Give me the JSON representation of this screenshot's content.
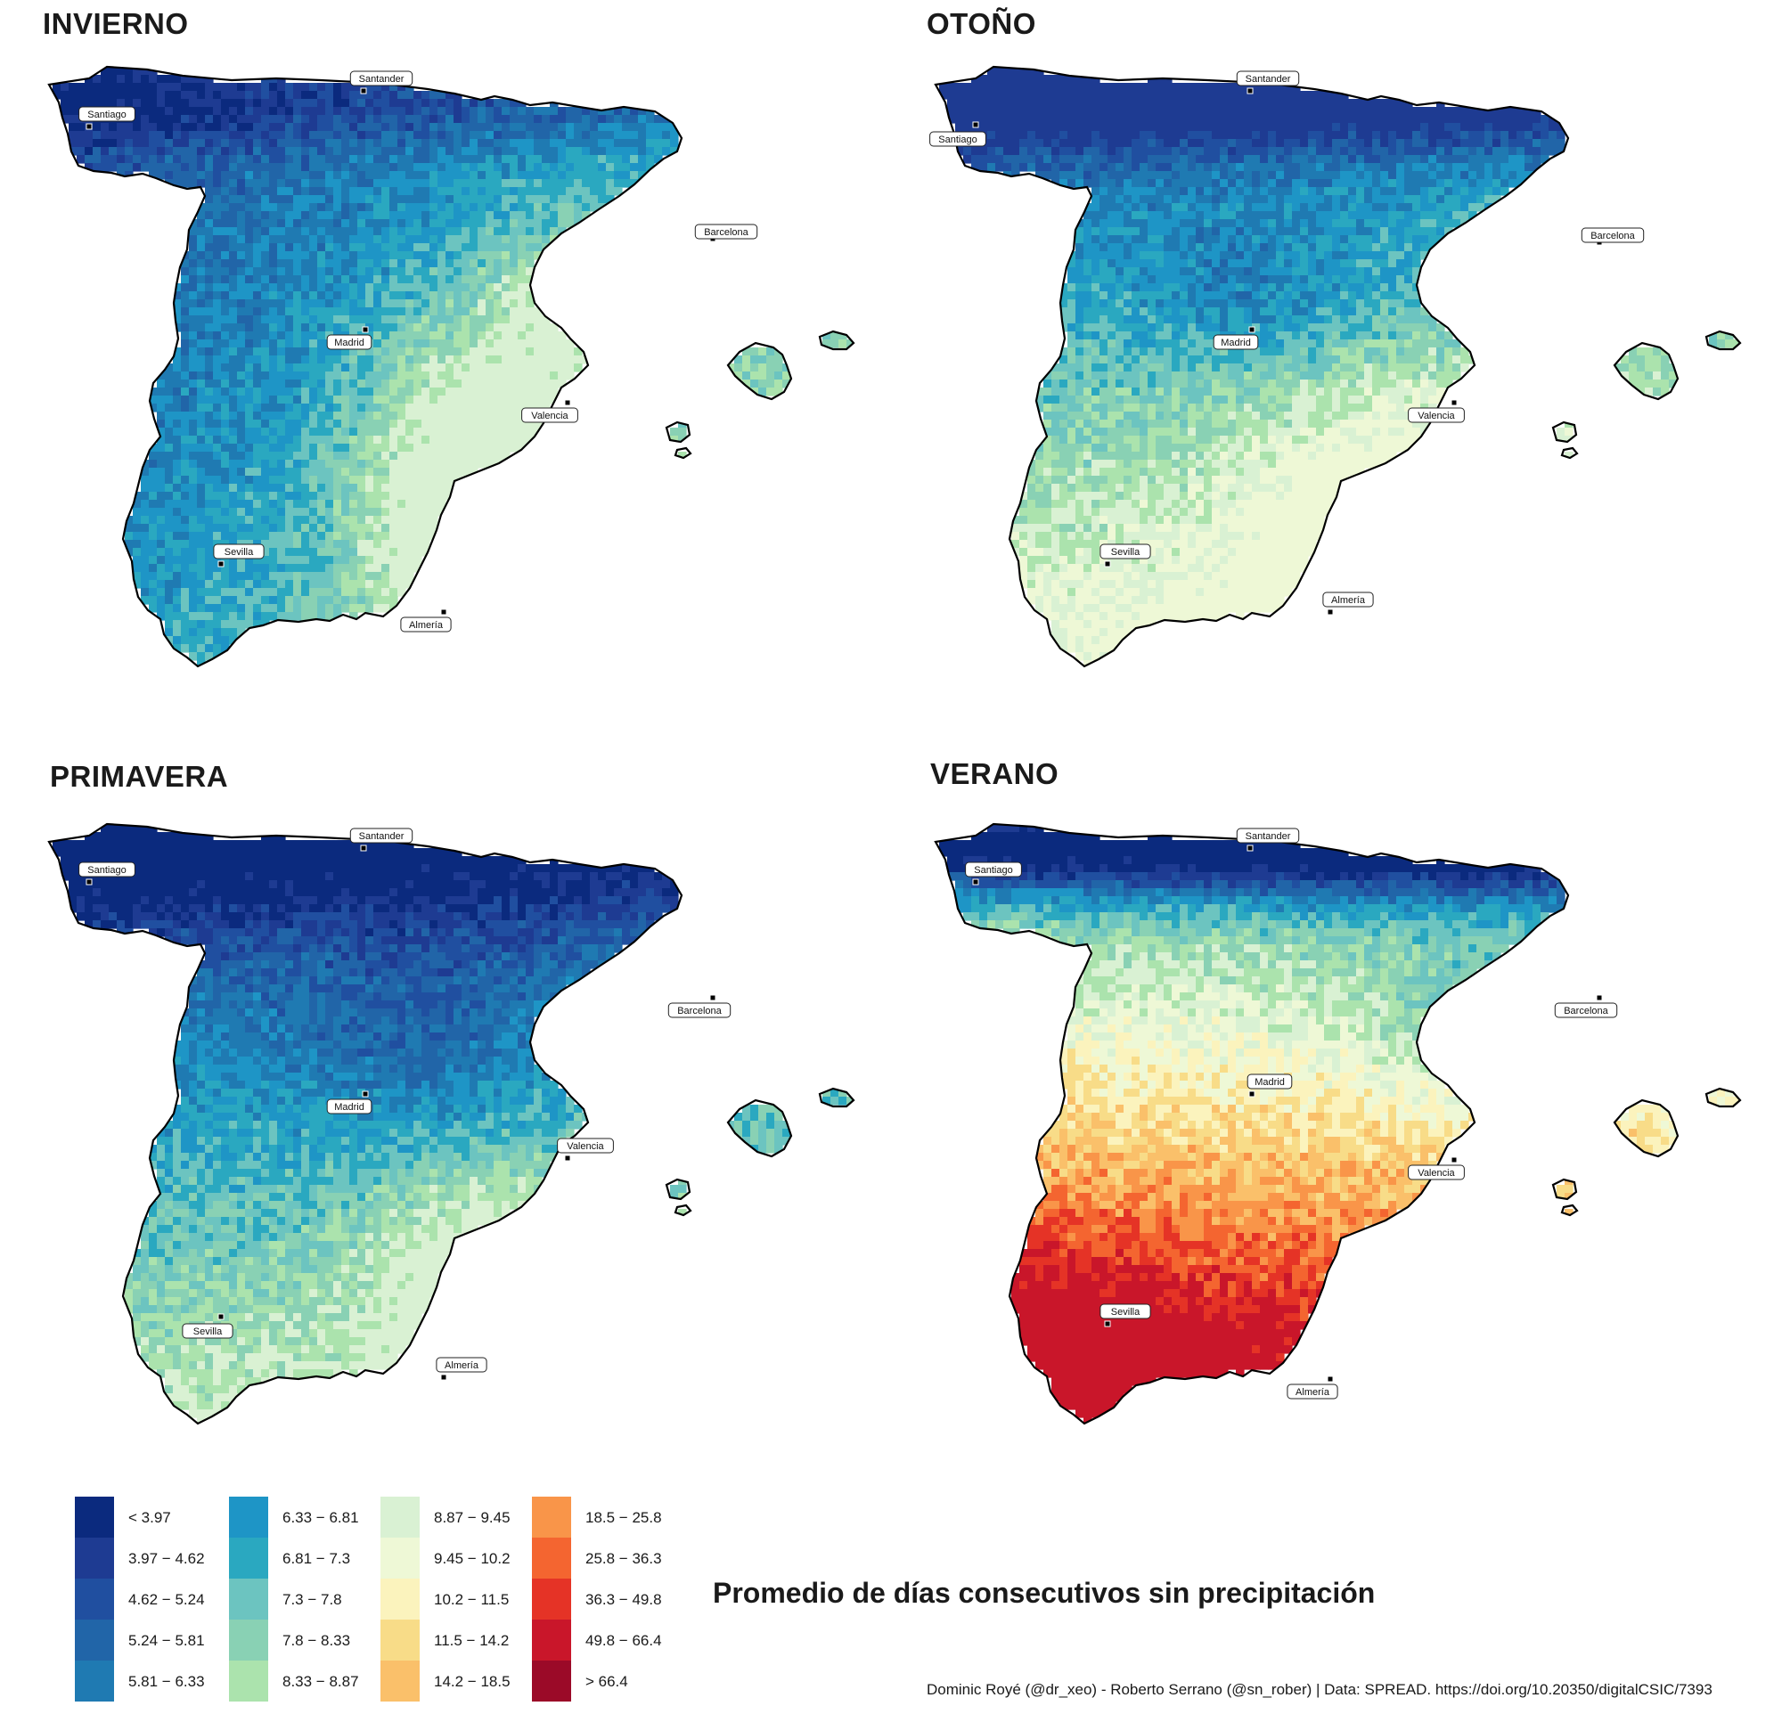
{
  "main_title": "Promedio de días consecutivos sin precipitación",
  "credits": "Dominic Royé (@dr_xeo) - Roberto Serrano (@sn_rober) | Data: SPREAD. https://doi.org/10.20350/digitalCSIC/7393",
  "cities": [
    "Santander",
    "Santiago",
    "Barcelona",
    "Madrid",
    "Valencia",
    "Sevilla",
    "Almería"
  ],
  "panels": [
    {
      "title": "INVIERNO",
      "palette_range": [
        0,
        10
      ]
    },
    {
      "title": "OTOÑO",
      "palette_range": [
        1,
        11
      ]
    },
    {
      "title": "PRIMAVERA",
      "palette_range": [
        0,
        10
      ]
    },
    {
      "title": "VERANO",
      "palette_range": [
        0,
        18
      ]
    }
  ],
  "legend": [
    {
      "label": "< 3.97",
      "color": "#0b2a7e"
    },
    {
      "label": "3.97 − 4.62",
      "color": "#1e3b92"
    },
    {
      "label": "4.62 − 5.24",
      "color": "#204fa0"
    },
    {
      "label": "5.24 − 5.81",
      "color": "#2165a8"
    },
    {
      "label": "5.81 − 6.33",
      "color": "#1f7ab2"
    },
    {
      "label": "6.33 − 6.81",
      "color": "#1e95c6"
    },
    {
      "label": "6.81 − 7.3",
      "color": "#2aa8c0"
    },
    {
      "label": "7.3 − 7.8",
      "color": "#6cc4c0"
    },
    {
      "label": "7.8 − 8.33",
      "color": "#89d1b4"
    },
    {
      "label": "8.33 − 8.87",
      "color": "#abe3ad"
    },
    {
      "label": "8.87 − 9.45",
      "color": "#d9f1d3"
    },
    {
      "label": "9.45 − 10.2",
      "color": "#eef8d6"
    },
    {
      "label": "10.2 − 11.5",
      "color": "#fbf3bd"
    },
    {
      "label": "11.5 − 14.2",
      "color": "#f8dc88"
    },
    {
      "label": "14.2 − 18.5",
      "color": "#fac06a"
    },
    {
      "label": "18.5 − 25.8",
      "color": "#f99549"
    },
    {
      "label": "25.8 − 36.3",
      "color": "#f46530"
    },
    {
      "label": "36.3 − 49.8",
      "color": "#e53326"
    },
    {
      "label": "49.8 − 66.4",
      "color": "#c9162a"
    },
    {
      "label": "> 66.4",
      "color": "#9b0a28"
    }
  ]
}
